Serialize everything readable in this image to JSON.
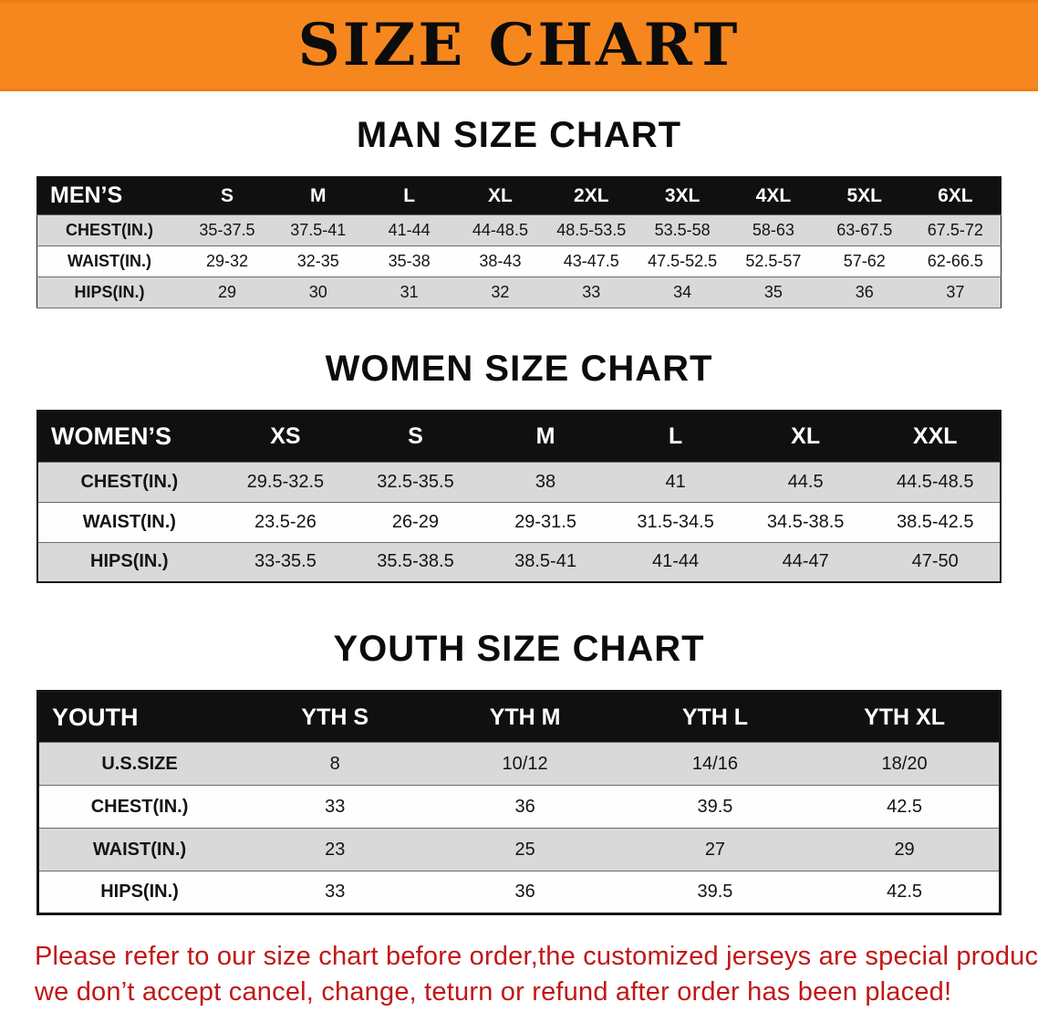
{
  "banner": {
    "title": "SIZE CHART"
  },
  "chart_data": [
    {
      "type": "table",
      "title": "MAN SIZE CHART",
      "columns": [
        "MEN’S",
        "S",
        "M",
        "L",
        "XL",
        "2XL",
        "3XL",
        "4XL",
        "5XL",
        "6XL"
      ],
      "rows": [
        [
          "CHEST(IN.)",
          "35-37.5",
          "37.5-41",
          "41-44",
          "44-48.5",
          "48.5-53.5",
          "53.5-58",
          "58-63",
          "63-67.5",
          "67.5-72"
        ],
        [
          "WAIST(IN.)",
          "29-32",
          "32-35",
          "35-38",
          "38-43",
          "43-47.5",
          "47.5-52.5",
          "52.5-57",
          "57-62",
          "62-66.5"
        ],
        [
          "HIPS(IN.)",
          "29",
          "30",
          "31",
          "32",
          "33",
          "34",
          "35",
          "36",
          "37"
        ]
      ]
    },
    {
      "type": "table",
      "title": "WOMEN SIZE CHART",
      "columns": [
        "WOMEN’S",
        "XS",
        "S",
        "M",
        "L",
        "XL",
        "XXL"
      ],
      "rows": [
        [
          "CHEST(IN.)",
          "29.5-32.5",
          "32.5-35.5",
          "38",
          "41",
          "44.5",
          "44.5-48.5"
        ],
        [
          "WAIST(IN.)",
          "23.5-26",
          "26-29",
          "29-31.5",
          "31.5-34.5",
          "34.5-38.5",
          "38.5-42.5"
        ],
        [
          "HIPS(IN.)",
          "33-35.5",
          "35.5-38.5",
          "38.5-41",
          "41-44",
          "44-47",
          "47-50"
        ]
      ]
    },
    {
      "type": "table",
      "title": "YOUTH SIZE CHART",
      "columns": [
        "YOUTH",
        "YTH S",
        "YTH M",
        "YTH L",
        "YTH XL"
      ],
      "rows": [
        [
          "U.S.SIZE",
          "8",
          "10/12",
          "14/16",
          "18/20"
        ],
        [
          "CHEST(IN.)",
          "33",
          "36",
          "39.5",
          "42.5"
        ],
        [
          "WAIST(IN.)",
          "23",
          "25",
          "27",
          "29"
        ],
        [
          "HIPS(IN.)",
          "33",
          "36",
          "39.5",
          "42.5"
        ]
      ]
    }
  ],
  "footer": {
    "line1": "Please refer to our size chart before order,the customized jerseys are special products,",
    "line2": "we don’t accept cancel, change, teturn or refund after order has been placed!"
  },
  "colors": {
    "banner_bg": "#f6871f",
    "table_header_bg": "#101010",
    "row_alt_bg": "#d9d9d9",
    "disclaimer_text": "#c11717"
  }
}
